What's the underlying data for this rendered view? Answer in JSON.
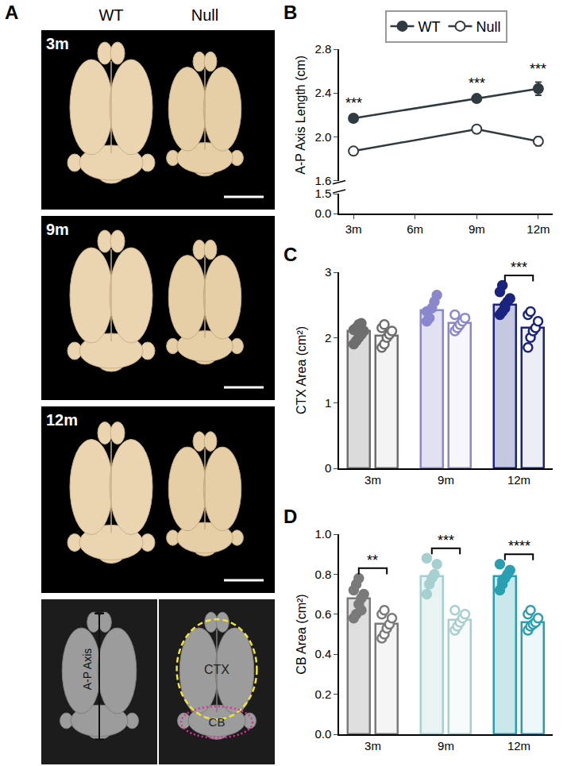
{
  "figure": {
    "panel_a": {
      "label": "A",
      "columns": [
        "WT",
        "Null"
      ],
      "rows": [
        "3m",
        "9m",
        "12m"
      ],
      "schematic": {
        "axis_label": "A-P Axis",
        "regions": [
          "CTX",
          "CB"
        ]
      }
    }
  },
  "chart_data": [
    {
      "panel": "B",
      "type": "line",
      "x": [
        3,
        9,
        12
      ],
      "xlim": [
        2.3,
        12.7
      ],
      "xticks": [
        {
          "value": 3,
          "label": "3m"
        },
        {
          "value": 6,
          "label": "6m"
        },
        {
          "value": 9,
          "label": "9m"
        },
        {
          "value": 12,
          "label": "12m"
        }
      ],
      "ylabel": "A-P Axis Length (cm)",
      "ylim": [
        1.6,
        2.8
      ],
      "yticks": [
        1.6,
        {
          "value": 2,
          "label": "2.0"
        },
        2.4,
        2.8
      ],
      "ylim_lower": [
        0,
        1.5
      ],
      "yticks_lower": [
        {
          "value": 0,
          "label": "0.0"
        },
        1.5
      ],
      "color": "#2f3b40",
      "legend": "top",
      "series": [
        {
          "name": "WT",
          "marker": "filled",
          "values": [
            2.17,
            2.35,
            2.44
          ],
          "error": [
            0.02,
            0.02,
            0.06
          ]
        },
        {
          "name": "Null",
          "marker": "open",
          "values": [
            1.87,
            2.07,
            1.96
          ],
          "error": [
            0.01,
            0.01,
            0.04
          ]
        }
      ],
      "significance": [
        {
          "x": 3,
          "label": "***"
        },
        {
          "x": 9,
          "label": "***"
        },
        {
          "x": 12,
          "label": "***"
        }
      ]
    },
    {
      "panel": "C",
      "type": "bar",
      "ylabel": "CTX Area (cm²)",
      "categories": [
        "3m",
        "9m",
        "12m"
      ],
      "colors": [
        "#6e6e6e",
        "#8b87cc",
        "#1a237e"
      ],
      "ylim": [
        0,
        3
      ],
      "yticks": [
        0,
        1,
        2,
        3
      ],
      "series": [
        {
          "marker": "filled",
          "values": [
            2.1,
            2.42,
            2.5
          ],
          "points": [
            [
              1.9,
              1.95,
              2.0,
              2.05,
              2.1,
              2.12,
              2.15,
              2.2,
              2.22
            ],
            [
              2.25,
              2.3,
              2.45,
              2.55,
              2.65,
              2.4
            ],
            [
              2.35,
              2.4,
              2.5,
              2.55,
              2.6,
              2.7,
              2.8,
              2.45
            ]
          ]
        },
        {
          "marker": "open",
          "values": [
            2.03,
            2.22,
            2.15
          ],
          "points": [
            [
              1.85,
              1.9,
              2.0,
              2.05,
              2.1,
              2.15,
              2.2
            ],
            [
              2.1,
              2.15,
              2.2,
              2.25,
              2.3,
              2.35
            ],
            [
              1.85,
              2.0,
              2.1,
              2.15,
              2.25,
              2.35,
              2.4
            ]
          ]
        }
      ],
      "significance": [
        {
          "category": "12m",
          "label": "***"
        }
      ]
    },
    {
      "panel": "D",
      "type": "bar",
      "ylabel": "CB Area (cm²)",
      "categories": [
        "3m",
        "9m",
        "12m"
      ],
      "colors": [
        "#7a7a7a",
        "#a6cfd0",
        "#2a9fb2"
      ],
      "ylim": [
        0,
        1
      ],
      "yticks": [
        {
          "value": 0,
          "label": "0.0"
        },
        0.2,
        0.4,
        0.6,
        0.8,
        {
          "value": 1,
          "label": "1.0"
        }
      ],
      "series": [
        {
          "marker": "filled",
          "values": [
            0.68,
            0.79,
            0.79
          ],
          "points": [
            [
              0.58,
              0.6,
              0.65,
              0.68,
              0.7,
              0.72,
              0.75,
              0.78,
              0.62
            ],
            [
              0.7,
              0.75,
              0.78,
              0.8,
              0.85,
              0.88
            ],
            [
              0.72,
              0.75,
              0.78,
              0.8,
              0.82,
              0.85,
              0.77
            ]
          ]
        },
        {
          "marker": "open",
          "values": [
            0.55,
            0.57,
            0.56
          ],
          "points": [
            [
              0.48,
              0.5,
              0.53,
              0.55,
              0.58,
              0.6,
              0.62
            ],
            [
              0.52,
              0.54,
              0.56,
              0.58,
              0.6,
              0.62
            ],
            [
              0.52,
              0.54,
              0.55,
              0.56,
              0.58,
              0.6,
              0.62
            ]
          ]
        }
      ],
      "significance": [
        {
          "category": "3m",
          "label": "**"
        },
        {
          "category": "9m",
          "label": "***"
        },
        {
          "category": "12m",
          "label": "****"
        }
      ]
    }
  ]
}
